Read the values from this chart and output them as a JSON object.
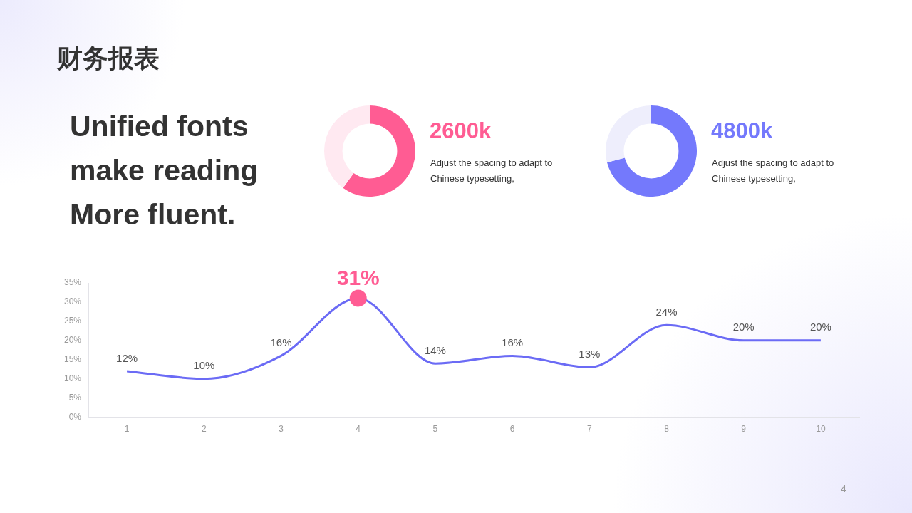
{
  "chart_data": [
    {
      "type": "other",
      "title": "财务报表",
      "annotations": [
        "Unified fonts make reading More fluent.",
        "4"
      ]
    },
    {
      "type": "donut",
      "title": "2600k",
      "subtitle": "Adjust the spacing to adapt to Chinese typesetting,",
      "categories": [
        null,
        null
      ],
      "values": [
        60,
        40
      ],
      "colors": [
        "#ff5c93",
        "#ffe9f1"
      ]
    },
    {
      "type": "donut",
      "title": "4800k",
      "subtitle": "Adjust the spacing to adapt to Chinese typesetting,",
      "categories": [
        null,
        null
      ],
      "values": [
        71,
        29
      ],
      "colors": [
        "#7479fc",
        "#eeeefc"
      ]
    },
    {
      "type": "line",
      "categories": [
        "1",
        "2",
        "3",
        "4",
        "5",
        "6",
        "7",
        "8",
        "9",
        "10"
      ],
      "series": [
        {
          "color": "#6b6bf5",
          "values": [
            12,
            10,
            16,
            31,
            14,
            16,
            13,
            24,
            20,
            20
          ],
          "value_labels": [
            "12%",
            "10%",
            "16%",
            null,
            "14%",
            "16%",
            "13%",
            "24%",
            "20%",
            "20%"
          ]
        }
      ],
      "annotations": [
        {
          "text": "31%",
          "x": "4",
          "y": 31
        }
      ],
      "ylim": [
        0,
        35
      ],
      "yticks": [
        {
          "value": 0,
          "label": "0%"
        },
        {
          "value": 5,
          "label": "5%"
        },
        {
          "value": 10,
          "label": "10%"
        },
        {
          "value": 15,
          "label": "15%"
        },
        {
          "value": 20,
          "label": "20%"
        },
        {
          "value": 25,
          "label": "25%"
        },
        {
          "value": 30,
          "label": "30%"
        },
        {
          "value": 35,
          "label": "35%"
        }
      ],
      "grid": false,
      "legend": false,
      "marker": "none",
      "line_style": "solid"
    }
  ]
}
